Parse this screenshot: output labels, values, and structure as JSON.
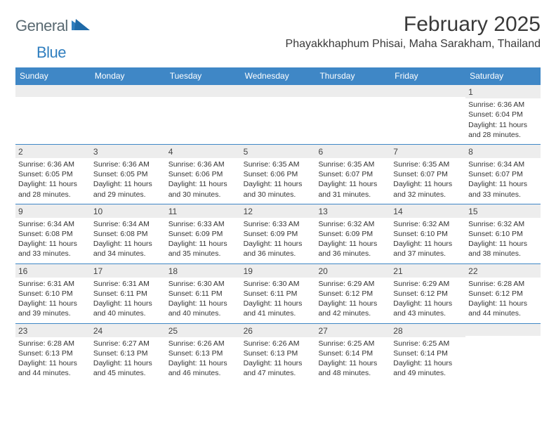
{
  "logo": {
    "part1": "General",
    "part2": "Blue"
  },
  "title": "February 2025",
  "location": "Phayakkhaphum Phisai, Maha Sarakham, Thailand",
  "colors": {
    "header_bar": "#3f87c6",
    "daynum_bg": "#ededed",
    "text": "#333333",
    "logo_gray": "#5a6a72",
    "logo_blue": "#2f7ebf"
  },
  "day_names": [
    "Sunday",
    "Monday",
    "Tuesday",
    "Wednesday",
    "Thursday",
    "Friday",
    "Saturday"
  ],
  "weeks": [
    [
      {
        "day": "",
        "sunrise": "",
        "sunset": "",
        "daylight": ""
      },
      {
        "day": "",
        "sunrise": "",
        "sunset": "",
        "daylight": ""
      },
      {
        "day": "",
        "sunrise": "",
        "sunset": "",
        "daylight": ""
      },
      {
        "day": "",
        "sunrise": "",
        "sunset": "",
        "daylight": ""
      },
      {
        "day": "",
        "sunrise": "",
        "sunset": "",
        "daylight": ""
      },
      {
        "day": "",
        "sunrise": "",
        "sunset": "",
        "daylight": ""
      },
      {
        "day": "1",
        "sunrise": "Sunrise: 6:36 AM",
        "sunset": "Sunset: 6:04 PM",
        "daylight": "Daylight: 11 hours and 28 minutes."
      }
    ],
    [
      {
        "day": "2",
        "sunrise": "Sunrise: 6:36 AM",
        "sunset": "Sunset: 6:05 PM",
        "daylight": "Daylight: 11 hours and 28 minutes."
      },
      {
        "day": "3",
        "sunrise": "Sunrise: 6:36 AM",
        "sunset": "Sunset: 6:05 PM",
        "daylight": "Daylight: 11 hours and 29 minutes."
      },
      {
        "day": "4",
        "sunrise": "Sunrise: 6:36 AM",
        "sunset": "Sunset: 6:06 PM",
        "daylight": "Daylight: 11 hours and 30 minutes."
      },
      {
        "day": "5",
        "sunrise": "Sunrise: 6:35 AM",
        "sunset": "Sunset: 6:06 PM",
        "daylight": "Daylight: 11 hours and 30 minutes."
      },
      {
        "day": "6",
        "sunrise": "Sunrise: 6:35 AM",
        "sunset": "Sunset: 6:07 PM",
        "daylight": "Daylight: 11 hours and 31 minutes."
      },
      {
        "day": "7",
        "sunrise": "Sunrise: 6:35 AM",
        "sunset": "Sunset: 6:07 PM",
        "daylight": "Daylight: 11 hours and 32 minutes."
      },
      {
        "day": "8",
        "sunrise": "Sunrise: 6:34 AM",
        "sunset": "Sunset: 6:07 PM",
        "daylight": "Daylight: 11 hours and 33 minutes."
      }
    ],
    [
      {
        "day": "9",
        "sunrise": "Sunrise: 6:34 AM",
        "sunset": "Sunset: 6:08 PM",
        "daylight": "Daylight: 11 hours and 33 minutes."
      },
      {
        "day": "10",
        "sunrise": "Sunrise: 6:34 AM",
        "sunset": "Sunset: 6:08 PM",
        "daylight": "Daylight: 11 hours and 34 minutes."
      },
      {
        "day": "11",
        "sunrise": "Sunrise: 6:33 AM",
        "sunset": "Sunset: 6:09 PM",
        "daylight": "Daylight: 11 hours and 35 minutes."
      },
      {
        "day": "12",
        "sunrise": "Sunrise: 6:33 AM",
        "sunset": "Sunset: 6:09 PM",
        "daylight": "Daylight: 11 hours and 36 minutes."
      },
      {
        "day": "13",
        "sunrise": "Sunrise: 6:32 AM",
        "sunset": "Sunset: 6:09 PM",
        "daylight": "Daylight: 11 hours and 36 minutes."
      },
      {
        "day": "14",
        "sunrise": "Sunrise: 6:32 AM",
        "sunset": "Sunset: 6:10 PM",
        "daylight": "Daylight: 11 hours and 37 minutes."
      },
      {
        "day": "15",
        "sunrise": "Sunrise: 6:32 AM",
        "sunset": "Sunset: 6:10 PM",
        "daylight": "Daylight: 11 hours and 38 minutes."
      }
    ],
    [
      {
        "day": "16",
        "sunrise": "Sunrise: 6:31 AM",
        "sunset": "Sunset: 6:10 PM",
        "daylight": "Daylight: 11 hours and 39 minutes."
      },
      {
        "day": "17",
        "sunrise": "Sunrise: 6:31 AM",
        "sunset": "Sunset: 6:11 PM",
        "daylight": "Daylight: 11 hours and 40 minutes."
      },
      {
        "day": "18",
        "sunrise": "Sunrise: 6:30 AM",
        "sunset": "Sunset: 6:11 PM",
        "daylight": "Daylight: 11 hours and 40 minutes."
      },
      {
        "day": "19",
        "sunrise": "Sunrise: 6:30 AM",
        "sunset": "Sunset: 6:11 PM",
        "daylight": "Daylight: 11 hours and 41 minutes."
      },
      {
        "day": "20",
        "sunrise": "Sunrise: 6:29 AM",
        "sunset": "Sunset: 6:12 PM",
        "daylight": "Daylight: 11 hours and 42 minutes."
      },
      {
        "day": "21",
        "sunrise": "Sunrise: 6:29 AM",
        "sunset": "Sunset: 6:12 PM",
        "daylight": "Daylight: 11 hours and 43 minutes."
      },
      {
        "day": "22",
        "sunrise": "Sunrise: 6:28 AM",
        "sunset": "Sunset: 6:12 PM",
        "daylight": "Daylight: 11 hours and 44 minutes."
      }
    ],
    [
      {
        "day": "23",
        "sunrise": "Sunrise: 6:28 AM",
        "sunset": "Sunset: 6:13 PM",
        "daylight": "Daylight: 11 hours and 44 minutes."
      },
      {
        "day": "24",
        "sunrise": "Sunrise: 6:27 AM",
        "sunset": "Sunset: 6:13 PM",
        "daylight": "Daylight: 11 hours and 45 minutes."
      },
      {
        "day": "25",
        "sunrise": "Sunrise: 6:26 AM",
        "sunset": "Sunset: 6:13 PM",
        "daylight": "Daylight: 11 hours and 46 minutes."
      },
      {
        "day": "26",
        "sunrise": "Sunrise: 6:26 AM",
        "sunset": "Sunset: 6:13 PM",
        "daylight": "Daylight: 11 hours and 47 minutes."
      },
      {
        "day": "27",
        "sunrise": "Sunrise: 6:25 AM",
        "sunset": "Sunset: 6:14 PM",
        "daylight": "Daylight: 11 hours and 48 minutes."
      },
      {
        "day": "28",
        "sunrise": "Sunrise: 6:25 AM",
        "sunset": "Sunset: 6:14 PM",
        "daylight": "Daylight: 11 hours and 49 minutes."
      },
      {
        "day": "",
        "sunrise": "",
        "sunset": "",
        "daylight": ""
      }
    ]
  ]
}
